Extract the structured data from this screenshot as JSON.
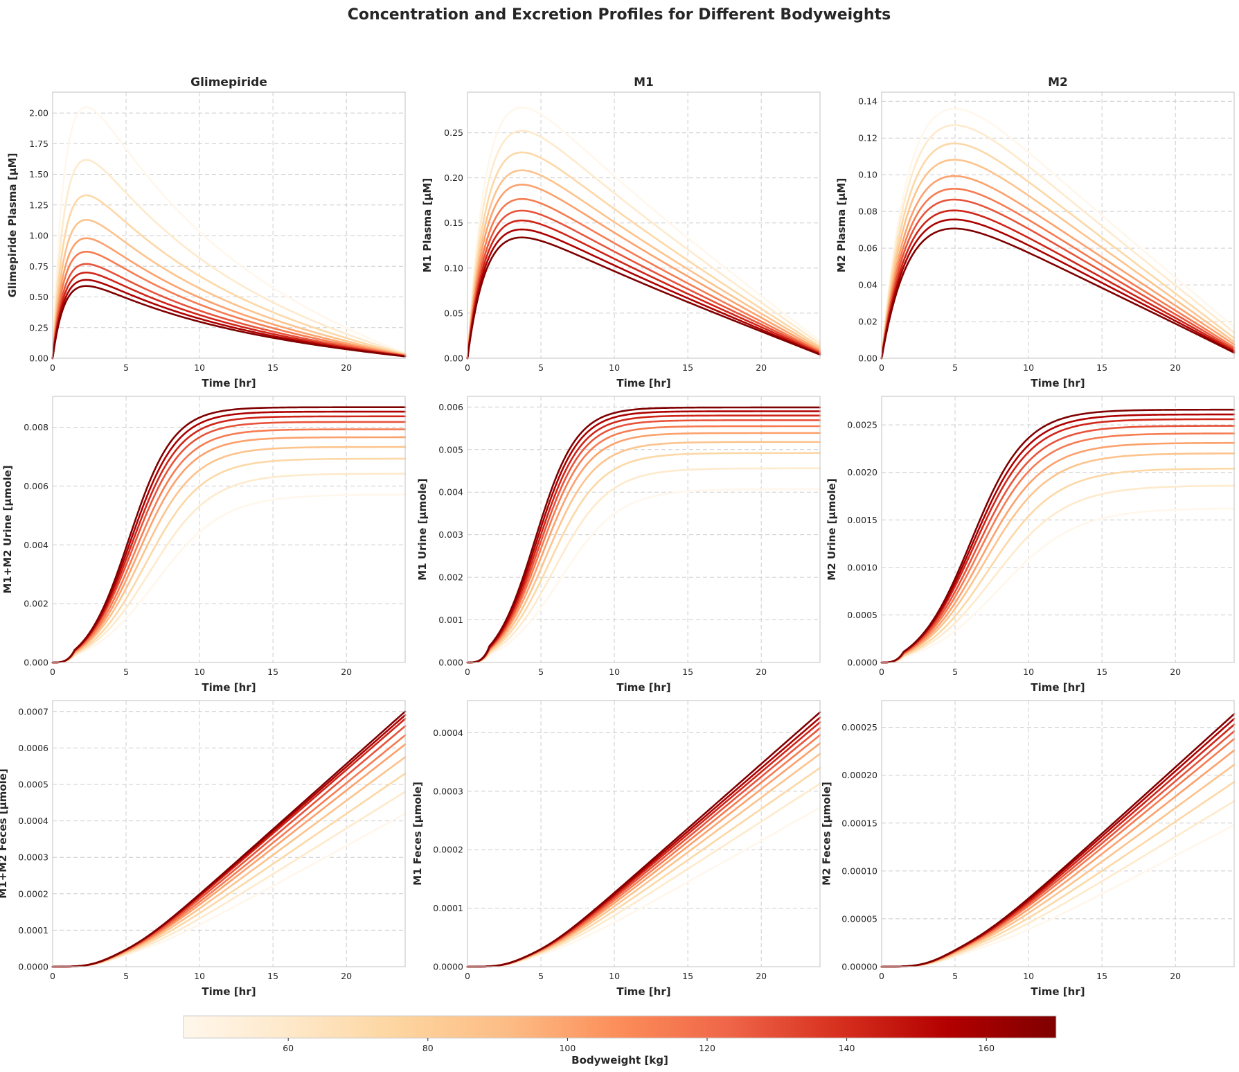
{
  "figure": {
    "suptitle": "Concentration and Excretion Profiles for Different Bodyweights",
    "colormap": [
      "#fff7ec",
      "#fee8c8",
      "#fdd49e",
      "#fdbb84",
      "#fc8d59",
      "#ef6548",
      "#d7301f",
      "#b30000",
      "#7f0000"
    ]
  },
  "colorbar": {
    "label": "Bodyweight [kg]",
    "range": [
      45,
      170
    ],
    "ticks": [
      60,
      80,
      100,
      120,
      140,
      160
    ]
  },
  "chart_data": {
    "type": "line",
    "bodyweights_kg": [
      45,
      58.9,
      72.8,
      86.7,
      100.6,
      114.4,
      128.3,
      142.2,
      156.1,
      170
    ],
    "panels": [
      {
        "title": "Glimepiride",
        "xlabel": "Time [hr]",
        "ylabel": "Glimepiride Plasma [µM]",
        "xlim": [
          0,
          24
        ],
        "ylim": [
          0,
          2.17
        ],
        "xticks": [
          0,
          5,
          10,
          15,
          20
        ],
        "yticks": [
          0.0,
          0.25,
          0.5,
          0.75,
          1.0,
          1.25,
          1.5,
          1.75,
          2.0
        ],
        "ytick_format": "2",
        "curve": {
          "kind": "bateman",
          "tpeak": 2.3,
          "ka": 1.2,
          "peaks": [
            2.05,
            1.62,
            1.33,
            1.13,
            0.98,
            0.87,
            0.77,
            0.7,
            0.64,
            0.59
          ],
          "end": [
            0.04,
            0.036,
            0.032,
            0.028,
            0.025,
            0.022,
            0.02,
            0.018,
            0.016,
            0.015
          ]
        }
      },
      {
        "title": "M1",
        "xlabel": "Time [hr]",
        "ylabel": "M1 Plasma [µM]",
        "xlim": [
          0,
          24
        ],
        "ylim": [
          0,
          0.295
        ],
        "xticks": [
          0,
          5,
          10,
          15,
          20
        ],
        "yticks": [
          0.0,
          0.05,
          0.1,
          0.15,
          0.2,
          0.25
        ],
        "ytick_format": "2",
        "curve": {
          "kind": "bateman",
          "tpeak": 3.8,
          "ka": 0.75,
          "peaks": [
            0.28,
            0.254,
            0.23,
            0.21,
            0.194,
            0.178,
            0.165,
            0.154,
            0.144,
            0.135
          ],
          "end": [
            0.019,
            0.016,
            0.013,
            0.011,
            0.009,
            0.0075,
            0.0065,
            0.0055,
            0.0045,
            0.004
          ]
        }
      },
      {
        "title": "M2",
        "xlabel": "Time [hr]",
        "ylabel": "M2 Plasma [µM]",
        "xlim": [
          0,
          24
        ],
        "ylim": [
          0,
          0.145
        ],
        "xticks": [
          0,
          5,
          10,
          15,
          20
        ],
        "yticks": [
          0.0,
          0.02,
          0.04,
          0.06,
          0.08,
          0.1,
          0.12,
          0.14
        ],
        "ytick_format": "2",
        "curve": {
          "kind": "bateman",
          "tpeak": 5.2,
          "ka": 0.5,
          "peaks": [
            0.138,
            0.129,
            0.119,
            0.11,
            0.101,
            0.094,
            0.088,
            0.082,
            0.077,
            0.072
          ],
          "end": [
            0.017,
            0.014,
            0.011,
            0.009,
            0.0075,
            0.006,
            0.005,
            0.0042,
            0.0035,
            0.003
          ]
        }
      },
      {
        "title": "",
        "xlabel": "Time [hr]",
        "ylabel": "M1+M2 Urine [µmole]",
        "xlim": [
          0,
          24
        ],
        "ylim": [
          0,
          0.00905
        ],
        "xticks": [
          0,
          5,
          10,
          15,
          20
        ],
        "yticks": [
          0.0,
          0.002,
          0.004,
          0.006,
          0.008
        ],
        "ytick_format": "3",
        "curve": {
          "kind": "sigmoid",
          "t50": [
            7.0,
            6.6,
            6.3,
            6.0,
            5.8,
            5.65,
            5.5,
            5.4,
            5.3,
            5.2
          ],
          "w": [
            2.3,
            2.1,
            1.95,
            1.85,
            1.75,
            1.7,
            1.65,
            1.6,
            1.55,
            1.5
          ],
          "end": [
            0.00571,
            0.00642,
            0.00693,
            0.00733,
            0.00766,
            0.00793,
            0.00818,
            0.00837,
            0.00853,
            0.00868
          ]
        }
      },
      {
        "title": "",
        "xlabel": "Time [hr]",
        "ylabel": "M1 Urine [µmole]",
        "xlim": [
          0,
          24
        ],
        "ylim": [
          0,
          0.00625
        ],
        "xticks": [
          0,
          5,
          10,
          15,
          20
        ],
        "yticks": [
          0.0,
          0.001,
          0.002,
          0.003,
          0.004,
          0.005,
          0.006
        ],
        "ytick_format": "3",
        "curve": {
          "kind": "sigmoid",
          "t50": [
            6.3,
            5.9,
            5.6,
            5.35,
            5.15,
            5.0,
            4.9,
            4.8,
            4.7,
            4.6
          ],
          "w": [
            2.0,
            1.85,
            1.75,
            1.65,
            1.58,
            1.52,
            1.48,
            1.45,
            1.42,
            1.4
          ],
          "end": [
            0.00407,
            0.00456,
            0.00492,
            0.00518,
            0.00539,
            0.00555,
            0.00569,
            0.0058,
            0.0059,
            0.00599
          ]
        }
      },
      {
        "title": "",
        "xlabel": "Time [hr]",
        "ylabel": "M2 Urine [µmole]",
        "xlim": [
          0,
          24
        ],
        "ylim": [
          0,
          0.0028
        ],
        "xticks": [
          0,
          5,
          10,
          15,
          20
        ],
        "yticks": [
          0.0,
          0.0005,
          0.001,
          0.0015,
          0.002,
          0.0025
        ],
        "ytick_format": "4",
        "curve": {
          "kind": "sigmoid",
          "t50": [
            8.0,
            7.6,
            7.3,
            7.0,
            6.8,
            6.6,
            6.45,
            6.3,
            6.2,
            6.1
          ],
          "w": [
            2.6,
            2.45,
            2.3,
            2.2,
            2.12,
            2.05,
            2.0,
            1.95,
            1.9,
            1.85
          ],
          "end": [
            0.00162,
            0.00186,
            0.00204,
            0.0022,
            0.00231,
            0.00241,
            0.00249,
            0.00256,
            0.00261,
            0.00266
          ]
        }
      },
      {
        "title": "",
        "xlabel": "Time [hr]",
        "ylabel": "M1+M2 Feces [µmole]",
        "xlim": [
          0,
          24
        ],
        "ylim": [
          0,
          0.00073
        ],
        "xticks": [
          0,
          5,
          10,
          15,
          20
        ],
        "yticks": [
          0.0,
          0.0001,
          0.0002,
          0.0003,
          0.0004,
          0.0005,
          0.0006,
          0.0007
        ],
        "ytick_format": "4",
        "curve": {
          "kind": "ramp",
          "t0": [
            2.0,
            1.9,
            1.8,
            1.75,
            1.7,
            1.65,
            1.6,
            1.55,
            1.5,
            1.5
          ],
          "s": [
            2.2,
            2.0,
            1.9,
            1.8,
            1.75,
            1.7,
            1.65,
            1.6,
            1.55,
            1.5
          ],
          "end": [
            0.00042,
            0.00048,
            0.00053,
            0.000575,
            0.00061,
            0.000635,
            0.00066,
            0.00068,
            0.00069,
            0.0007
          ]
        }
      },
      {
        "title": "",
        "xlabel": "Time [hr]",
        "ylabel": "M1 Feces [µmole]",
        "xlim": [
          0,
          24
        ],
        "ylim": [
          0,
          0.000455
        ],
        "xticks": [
          0,
          5,
          10,
          15,
          20
        ],
        "yticks": [
          0.0,
          0.0001,
          0.0002,
          0.0003,
          0.0004
        ],
        "ytick_format": "4",
        "curve": {
          "kind": "ramp",
          "t0": [
            1.8,
            1.7,
            1.6,
            1.55,
            1.5,
            1.45,
            1.4,
            1.35,
            1.3,
            1.3
          ],
          "s": [
            2.0,
            1.85,
            1.75,
            1.7,
            1.65,
            1.6,
            1.55,
            1.5,
            1.45,
            1.4
          ],
          "end": [
            0.000272,
            0.000313,
            0.00034,
            0.000364,
            0.000382,
            0.000396,
            0.000408,
            0.000418,
            0.000426,
            0.000435
          ]
        }
      },
      {
        "title": "",
        "xlabel": "Time [hr]",
        "ylabel": "M2 Feces [µmole]",
        "xlim": [
          0,
          24
        ],
        "ylim": [
          0,
          0.000278
        ],
        "xticks": [
          0,
          5,
          10,
          15,
          20
        ],
        "yticks": [
          0.0,
          5e-05,
          0.0001,
          0.00015,
          0.0002,
          0.00025
        ],
        "ytick_format": "5",
        "curve": {
          "kind": "ramp",
          "t0": [
            2.6,
            2.5,
            2.4,
            2.3,
            2.25,
            2.2,
            2.15,
            2.1,
            2.05,
            2.0
          ],
          "s": [
            2.6,
            2.45,
            2.35,
            2.25,
            2.18,
            2.12,
            2.06,
            2.0,
            1.95,
            1.9
          ],
          "end": [
            0.000148,
            0.000173,
            0.000193,
            0.000211,
            0.000226,
            0.000238,
            0.000246,
            0.000253,
            0.000259,
            0.000264
          ]
        }
      }
    ]
  }
}
